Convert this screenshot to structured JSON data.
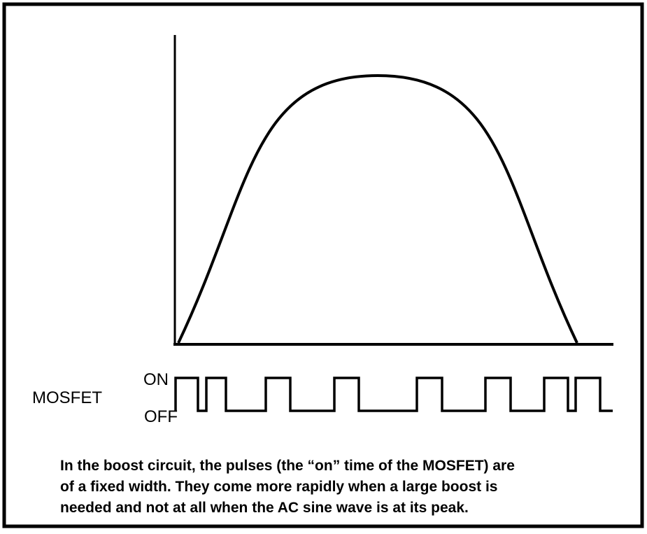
{
  "labels": {
    "on": "ON",
    "off": "OFF",
    "mosfet": "MOSFET"
  },
  "caption": [
    "In the boost circuit, the pulses (the “on” time of the MOSFET) are",
    "of a fixed width. They come more rapidly when a large boost is",
    "needed and not at all when the AC sine wave is at its peak."
  ]
}
